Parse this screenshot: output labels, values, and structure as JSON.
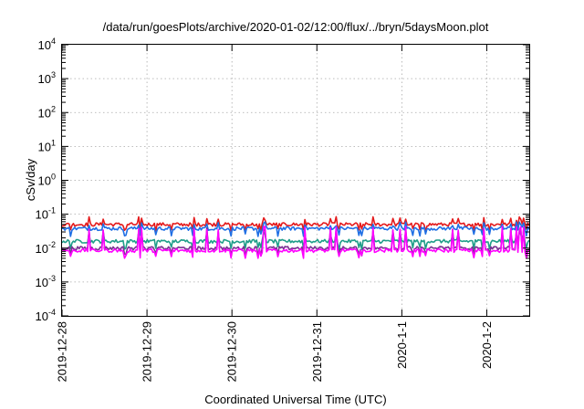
{
  "chart_data": {
    "type": "line",
    "title": "/data/run/goesPlots/archive/2020-01-02/12:00/flux/../bryn/5daysMoon.plot",
    "xlabel": "Coordinated Universal Time (UTC)",
    "ylabel": "cSv/day",
    "yscale": "log",
    "ylim": [
      0.0001,
      10000
    ],
    "yticks": [
      {
        "base": "10",
        "exp": "-4",
        "value": 0.0001
      },
      {
        "base": "10",
        "exp": "-3",
        "value": 0.001
      },
      {
        "base": "10",
        "exp": "-2",
        "value": 0.01
      },
      {
        "base": "10",
        "exp": "-1",
        "value": 0.1
      },
      {
        "base": "10",
        "exp": "0",
        "value": 1
      },
      {
        "base": "10",
        "exp": "1",
        "value": 10
      },
      {
        "base": "10",
        "exp": "2",
        "value": 100
      },
      {
        "base": "10",
        "exp": "3",
        "value": 1000
      },
      {
        "base": "10",
        "exp": "4",
        "value": 10000
      }
    ],
    "xlim": [
      "2019-12-28 00:00",
      "2020-01-02 12:00"
    ],
    "xticks": [
      {
        "label": "2019-12-28",
        "value": "2019-12-28 00:00"
      },
      {
        "label": "2019-12-29",
        "value": "2019-12-29 00:00"
      },
      {
        "label": "2019-12-30",
        "value": "2019-12-30 00:00"
      },
      {
        "label": "2019-12-31",
        "value": "2019-12-31 00:00"
      },
      {
        "label": "2020-1-1",
        "value": "2020-01-01 00:00"
      },
      {
        "label": "2020-1-2",
        "value": "2020-01-02 00:00"
      }
    ],
    "grid": true,
    "series": [
      {
        "color": "#e41a1c",
        "base": 0.05,
        "spike_high": 0.085,
        "spike_low": 0.035
      },
      {
        "color": "#1f6fe5",
        "base": 0.038,
        "spike_high": 0.06,
        "spike_low": 0.024
      },
      {
        "color": "#1f9e89",
        "base": 0.016,
        "spike_high": 0.03,
        "spike_low": 0.01
      },
      {
        "color": "#7b3294",
        "base": 0.01,
        "spike_high": 0.04,
        "spike_low": 0.0065
      },
      {
        "color": "#ff00ff",
        "base": 0.0085,
        "spike_high": 0.045,
        "spike_low": 0.0055
      }
    ]
  }
}
